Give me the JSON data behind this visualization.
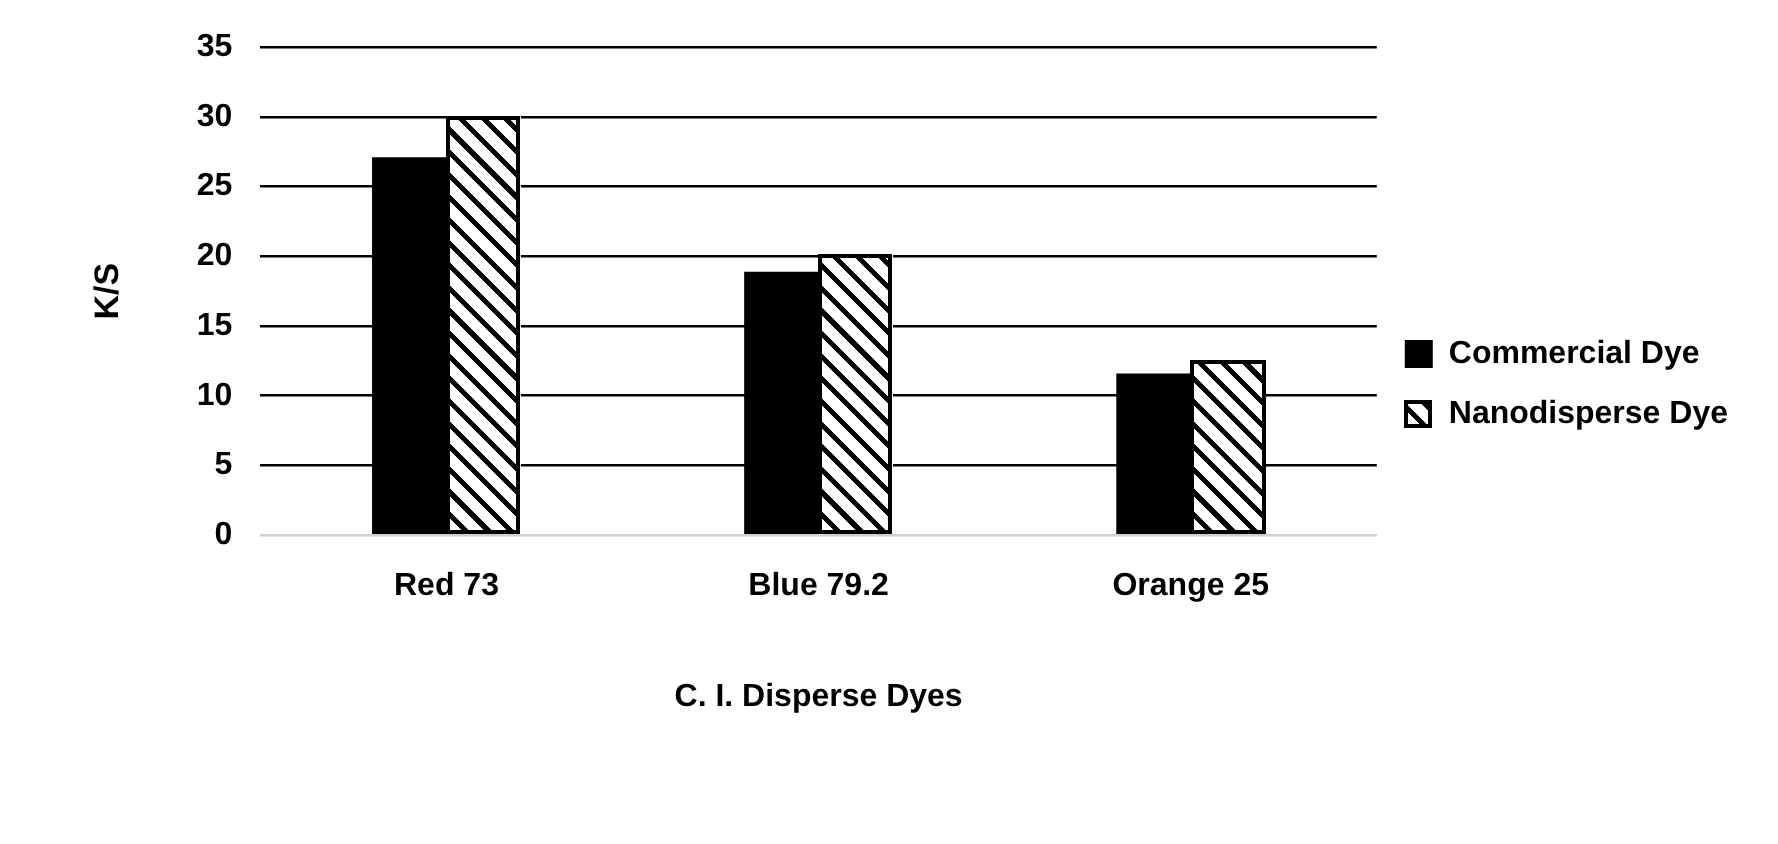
{
  "chart_data": {
    "type": "bar",
    "xlabel": "C. I. Disperse Dyes",
    "ylabel": "K/S",
    "categories": [
      "Red 73",
      "Blue 79.2",
      "Orange 25"
    ],
    "series": [
      {
        "name": "Commercial Dye",
        "color": "#000000",
        "values": [
          27.1,
          18.9,
          11.6
        ]
      },
      {
        "name": "Nanodisperse Dye",
        "color": "#ffffff",
        "values": [
          30.1,
          20.1,
          12.5
        ]
      }
    ],
    "ylim": [
      0,
      35
    ],
    "yticks": [
      0,
      5,
      10,
      15,
      20,
      25,
      30,
      35
    ],
    "grid": "y",
    "legend": "right"
  }
}
